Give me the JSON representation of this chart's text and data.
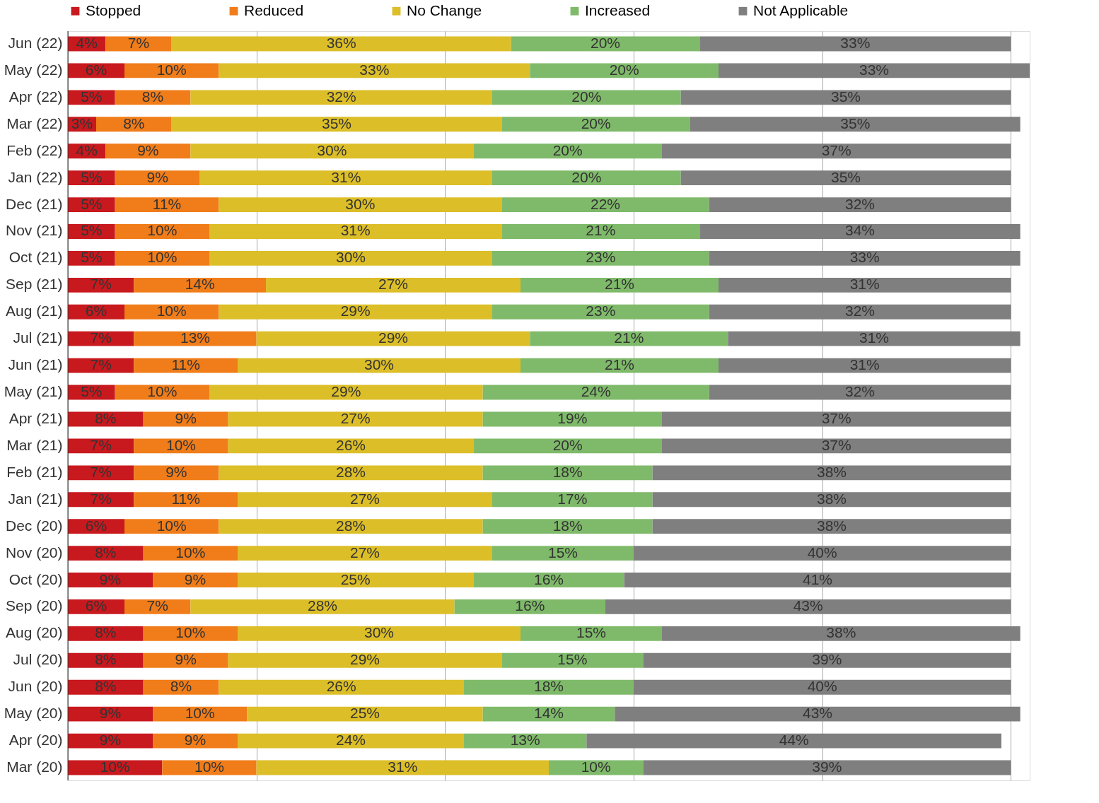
{
  "chart_data": {
    "type": "bar",
    "orientation": "horizontal",
    "stacked": true,
    "legend": "top",
    "grid": "x",
    "tick_labels": "y",
    "categories": [
      "Jun (22)",
      "May (22)",
      "Apr (22)",
      "Mar (22)",
      "Feb (22)",
      "Jan (22)",
      "Dec (21)",
      "Nov (21)",
      "Oct (21)",
      "Sep (21)",
      "Aug (21)",
      "Jul (21)",
      "Jun (21)",
      "May (21)",
      "Apr (21)",
      "Mar (21)",
      "Feb (21)",
      "Jan (21)",
      "Dec (20)",
      "Nov (20)",
      "Oct (20)",
      "Sep (20)",
      "Aug (20)",
      "Jul (20)",
      "Jun (20)",
      "May (20)",
      "Apr (20)",
      "Mar (20)"
    ],
    "xlim": [
      0,
      102
    ],
    "xticks": [
      {
        "value": 0,
        "label": null
      },
      {
        "value": 20,
        "label": null
      },
      {
        "value": 40,
        "label": null
      },
      {
        "value": 60,
        "label": null
      },
      {
        "value": 80,
        "label": null
      },
      {
        "value": 100,
        "label": null
      }
    ],
    "series": [
      {
        "name": "Stopped",
        "color": "#c8191e",
        "values": [
          4,
          6,
          5,
          3,
          4,
          5,
          5,
          5,
          5,
          7,
          6,
          7,
          7,
          5,
          8,
          7,
          7,
          7,
          6,
          8,
          9,
          6,
          8,
          8,
          8,
          9,
          9,
          10
        ],
        "value_labels": [
          "4%",
          "6%",
          "5%",
          "3%",
          "4%",
          "5%",
          "5%",
          "5%",
          "5%",
          "7%",
          "6%",
          "7%",
          "7%",
          "5%",
          "8%",
          "7%",
          "7%",
          "7%",
          "6%",
          "8%",
          "9%",
          "6%",
          "8%",
          "8%",
          "8%",
          "9%",
          "9%",
          "10%"
        ]
      },
      {
        "name": "Reduced",
        "color": "#f07d19",
        "values": [
          7,
          10,
          8,
          8,
          9,
          9,
          11,
          10,
          10,
          14,
          10,
          13,
          11,
          10,
          9,
          10,
          9,
          11,
          10,
          10,
          9,
          7,
          10,
          9,
          8,
          10,
          9,
          10
        ],
        "value_labels": [
          "7%",
          "10%",
          "8%",
          "8%",
          "9%",
          "9%",
          "11%",
          "10%",
          "10%",
          "14%",
          "10%",
          "13%",
          "11%",
          "10%",
          "9%",
          "10%",
          "9%",
          "11%",
          "10%",
          "10%",
          "9%",
          "7%",
          "10%",
          "9%",
          "8%",
          "10%",
          "9%",
          "10%"
        ]
      },
      {
        "name": "No Change",
        "color": "#dcbe28",
        "values": [
          36,
          33,
          32,
          35,
          30,
          31,
          30,
          31,
          30,
          27,
          29,
          29,
          30,
          29,
          27,
          26,
          28,
          27,
          28,
          27,
          25,
          28,
          30,
          29,
          26,
          25,
          24,
          31
        ],
        "value_labels": [
          "36%",
          "33%",
          "32%",
          "35%",
          "30%",
          "31%",
          "30%",
          "31%",
          "30%",
          "27%",
          "29%",
          "29%",
          "30%",
          "29%",
          "27%",
          "26%",
          "28%",
          "27%",
          "28%",
          "27%",
          "25%",
          "28%",
          "30%",
          "29%",
          "26%",
          "25%",
          "24%",
          "31%"
        ]
      },
      {
        "name": "Increased",
        "color": "#7fba6a",
        "values": [
          20,
          20,
          20,
          20,
          20,
          20,
          22,
          21,
          23,
          21,
          23,
          21,
          21,
          24,
          19,
          20,
          18,
          17,
          18,
          15,
          16,
          16,
          15,
          15,
          18,
          14,
          13,
          10
        ],
        "value_labels": [
          "20%",
          "20%",
          "20%",
          "20%",
          "20%",
          "20%",
          "22%",
          "21%",
          "23%",
          "21%",
          "23%",
          "21%",
          "21%",
          "24%",
          "19%",
          "20%",
          "18%",
          "17%",
          "18%",
          "15%",
          "16%",
          "16%",
          "15%",
          "15%",
          "18%",
          "14%",
          "13%",
          "10%"
        ]
      },
      {
        "name": "Not Applicable",
        "color": "#7f7f7f",
        "values": [
          33,
          33,
          35,
          35,
          37,
          35,
          32,
          34,
          33,
          31,
          32,
          31,
          31,
          32,
          37,
          37,
          38,
          38,
          38,
          40,
          41,
          43,
          38,
          39,
          40,
          43,
          44,
          39
        ],
        "value_labels": [
          "33%",
          "33%",
          "35%",
          "35%",
          "37%",
          "35%",
          "32%",
          "34%",
          "33%",
          "31%",
          "32%",
          "31%",
          "31%",
          "32%",
          "37%",
          "37%",
          "38%",
          "38%",
          "38%",
          "40%",
          "41%",
          "43%",
          "38%",
          "39%",
          "40%",
          "43%",
          "44%",
          "39%"
        ]
      }
    ]
  }
}
